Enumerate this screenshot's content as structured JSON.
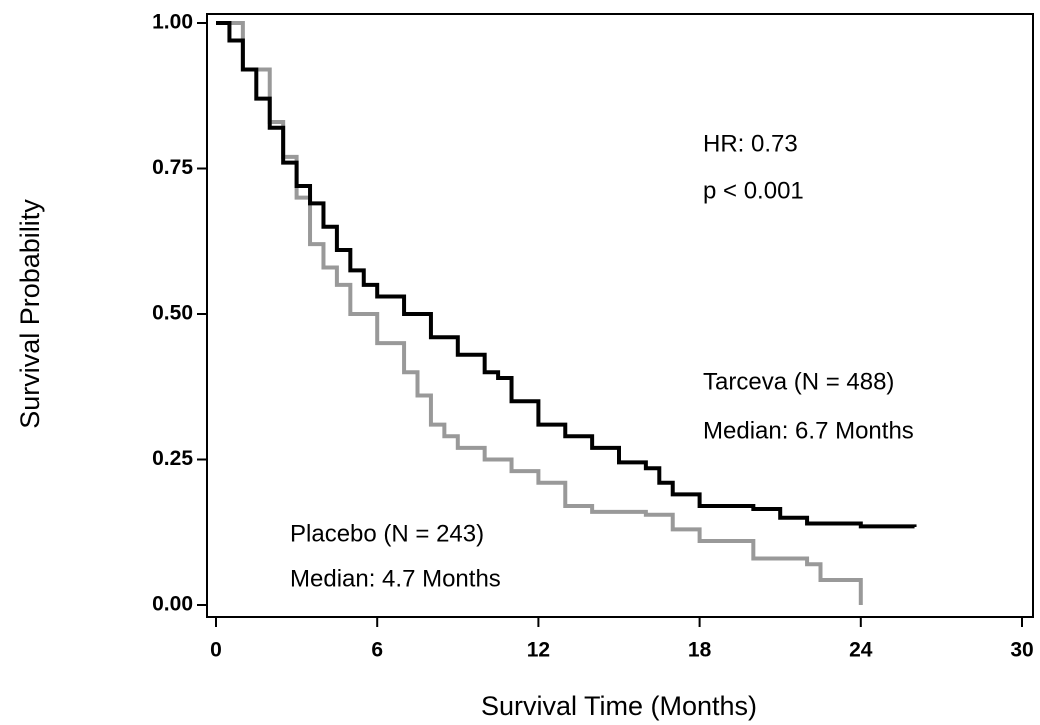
{
  "chart_data": {
    "type": "step",
    "xlabel": "Survival Time (Months)",
    "ylabel": "Survival Probability",
    "xlim": [
      0,
      30
    ],
    "xticks": [
      0,
      6,
      12,
      18,
      24,
      30
    ],
    "ylim": [
      0,
      1
    ],
    "yticks": [
      {
        "value": 0,
        "label": "0.00"
      },
      {
        "value": 0.25,
        "label": "0.25"
      },
      {
        "value": 0.5,
        "label": "0.50"
      },
      {
        "value": 0.75,
        "label": "0.75"
      },
      {
        "value": 1,
        "label": "1.00"
      }
    ],
    "series": [
      {
        "color": "#999999",
        "x": [
          0,
          1,
          2,
          2.5,
          3,
          3.5,
          4,
          4.5,
          5,
          6,
          7,
          7.5,
          8,
          8.5,
          9,
          10,
          11,
          12,
          13,
          14,
          16,
          17,
          18,
          20,
          22,
          22.5,
          24
        ],
        "values": [
          1.0,
          0.92,
          0.83,
          0.77,
          0.7,
          0.62,
          0.58,
          0.55,
          0.5,
          0.45,
          0.4,
          0.36,
          0.31,
          0.29,
          0.27,
          0.25,
          0.23,
          0.21,
          0.17,
          0.16,
          0.155,
          0.13,
          0.11,
          0.08,
          0.07,
          0.043,
          0.0
        ]
      },
      {
        "color": "#000000",
        "x": [
          0,
          0.5,
          1,
          1.5,
          2,
          2.5,
          3,
          3.5,
          4,
          4.5,
          5,
          5.5,
          6,
          7,
          8,
          9,
          10,
          10.5,
          11,
          12,
          13,
          14,
          15,
          16,
          16.5,
          17,
          18,
          20,
          21,
          22,
          24,
          26
        ],
        "values": [
          1.0,
          0.97,
          0.92,
          0.87,
          0.82,
          0.76,
          0.72,
          0.69,
          0.65,
          0.61,
          0.575,
          0.55,
          0.53,
          0.5,
          0.46,
          0.43,
          0.4,
          0.39,
          0.35,
          0.31,
          0.29,
          0.27,
          0.245,
          0.235,
          0.21,
          0.19,
          0.17,
          0.165,
          0.15,
          0.14,
          0.135,
          0.134
        ]
      }
    ],
    "annotations": [
      "HR: 0.73",
      "p < 0.001",
      "Tarceva (N = 488)",
      "Median: 6.7 Months",
      "Placebo (N = 243)",
      "Median: 4.7 Months"
    ]
  }
}
